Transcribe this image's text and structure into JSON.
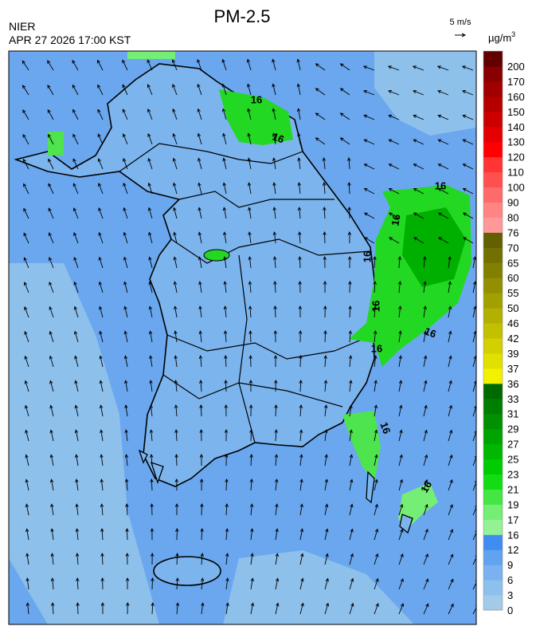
{
  "header": {
    "title": "PM-2.5",
    "agency": "NIER",
    "datetime": "APR 27 2026 17:00 KST"
  },
  "wind_scale": {
    "label": "5 m/s"
  },
  "colorbar": {
    "unit": "µg/m",
    "unit_exponent": "3",
    "levels": [
      0,
      3,
      6,
      9,
      12,
      16,
      17,
      19,
      21,
      23,
      25,
      27,
      29,
      31,
      33,
      36,
      37,
      39,
      42,
      46,
      50,
      55,
      60,
      65,
      70,
      76,
      80,
      90,
      100,
      110,
      120,
      130,
      140,
      150,
      160,
      170,
      200
    ],
    "colors": [
      "#a3cbe9",
      "#8ec0ec",
      "#79b2ef",
      "#62a3f0",
      "#3f8df1",
      "#94f294",
      "#74ee74",
      "#44e644",
      "#14dc14",
      "#00cc00",
      "#00b800",
      "#00a400",
      "#009000",
      "#007e00",
      "#006a00",
      "#f2f200",
      "#e2e000",
      "#d2d000",
      "#c2c000",
      "#b2b000",
      "#a2a000",
      "#929000",
      "#828000",
      "#727000",
      "#626000",
      "#ff9898",
      "#ff8585",
      "#ff6a6a",
      "#ff5050",
      "#ff3434",
      "#ff0000",
      "#e40000",
      "#cc0000",
      "#b60000",
      "#a00000",
      "#880000",
      "#620000"
    ]
  },
  "contour_labels": [
    "16",
    "16",
    "16",
    "16",
    "16",
    "16",
    "16",
    "16",
    "16",
    "16"
  ]
}
